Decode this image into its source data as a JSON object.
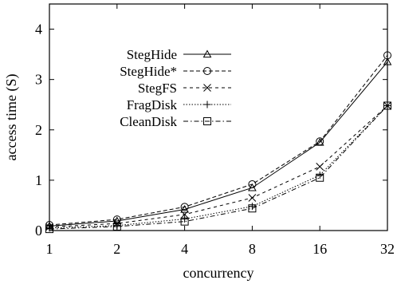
{
  "chart_data": {
    "type": "line",
    "xlabel": "concurrency",
    "ylabel": "access time (S)",
    "x_scale": "log2",
    "categories": [
      "1",
      "2",
      "4",
      "8",
      "16",
      "32"
    ],
    "x": [
      1,
      2,
      4,
      8,
      16,
      32
    ],
    "ylim": [
      0,
      4.5
    ],
    "yticks": [
      0,
      1,
      2,
      3,
      4
    ],
    "grid": false,
    "legend_position": "upper-left",
    "series": [
      {
        "name": "StegHide",
        "marker": "triangle",
        "dash": "solid",
        "values": [
          0.09,
          0.19,
          0.42,
          0.85,
          1.75,
          3.35
        ]
      },
      {
        "name": "StegHide*",
        "marker": "circle",
        "dash": "dashed",
        "values": [
          0.11,
          0.22,
          0.47,
          0.92,
          1.77,
          3.48
        ]
      },
      {
        "name": "StegFS",
        "marker": "x",
        "dash": "dashed-short",
        "values": [
          0.07,
          0.14,
          0.32,
          0.65,
          1.27,
          2.48
        ]
      },
      {
        "name": "FragDisk",
        "marker": "plus",
        "dash": "dotted",
        "values": [
          0.05,
          0.1,
          0.23,
          0.48,
          1.1,
          2.48
        ]
      },
      {
        "name": "CleanDisk",
        "marker": "square",
        "dash": "dash-dot",
        "values": [
          0.03,
          0.08,
          0.18,
          0.44,
          1.05,
          2.48
        ]
      }
    ]
  }
}
